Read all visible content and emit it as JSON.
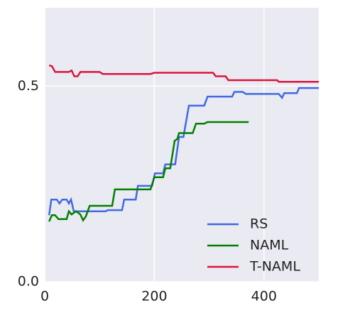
{
  "chart_data": {
    "type": "line",
    "xlim": [
      0,
      500
    ],
    "ylim": [
      0,
      0.7
    ],
    "xticks": [
      0,
      200,
      400
    ],
    "yticks": [
      {
        "value": 0,
        "label": "0.0"
      },
      0.5
    ],
    "grid": true,
    "legend": "lower right",
    "series": [
      {
        "name": "RS",
        "color": "#4169e1",
        "x": [
          8,
          12,
          22,
          27,
          32,
          40,
          44,
          48,
          53,
          111,
          115,
          141,
          145,
          166,
          170,
          196,
          201,
          216,
          220,
          238,
          245,
          253,
          263,
          291,
          297,
          342,
          346,
          361,
          367,
          427,
          433,
          437,
          460,
          464,
          500
        ],
        "values": [
          0.17,
          0.21,
          0.21,
          0.2,
          0.21,
          0.21,
          0.2,
          0.21,
          0.18,
          0.18,
          0.183,
          0.183,
          0.21,
          0.21,
          0.245,
          0.245,
          0.277,
          0.277,
          0.3,
          0.3,
          0.37,
          0.37,
          0.45,
          0.45,
          0.473,
          0.473,
          0.485,
          0.485,
          0.48,
          0.48,
          0.47,
          0.482,
          0.482,
          0.495,
          0.495
        ]
      },
      {
        "name": "NAML",
        "color": "#008000",
        "x": [
          8,
          13,
          19,
          25,
          40,
          44,
          49,
          57,
          65,
          70,
          75,
          82,
          123,
          128,
          193,
          200,
          216,
          220,
          229,
          237,
          242,
          245,
          270,
          276,
          291,
          297,
          372
        ],
        "values": [
          0.154,
          0.17,
          0.17,
          0.16,
          0.16,
          0.18,
          0.172,
          0.18,
          0.172,
          0.157,
          0.167,
          0.194,
          0.194,
          0.236,
          0.236,
          0.267,
          0.267,
          0.29,
          0.29,
          0.36,
          0.365,
          0.38,
          0.38,
          0.404,
          0.404,
          0.408,
          0.408
        ]
      },
      {
        "name": "T-NAML",
        "color": "#dc143c",
        "x": [
          8,
          13,
          19,
          44,
          49,
          54,
          60,
          65,
          100,
          106,
          193,
          200,
          307,
          312,
          330,
          335,
          424,
          427,
          500
        ],
        "values": [
          0.553,
          0.551,
          0.536,
          0.536,
          0.54,
          0.525,
          0.525,
          0.536,
          0.536,
          0.531,
          0.531,
          0.534,
          0.534,
          0.525,
          0.525,
          0.515,
          0.515,
          0.511,
          0.511
        ]
      }
    ]
  }
}
